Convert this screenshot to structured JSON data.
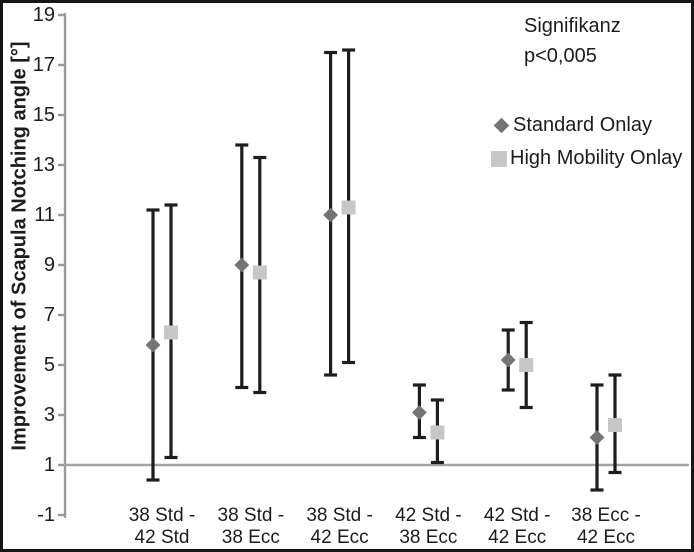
{
  "annotation": {
    "line1": "Signifikanz",
    "line2": "p<0,005"
  },
  "colors": {
    "standard_onlay": "#747474",
    "high_mobility_onlay": "#c7c7c7",
    "error_bar": "#1d1d1d",
    "axis": "#9a9a9a",
    "baseline": "#a4a4a4",
    "text": "#1c1c1c",
    "border": "#161616",
    "background": "#ffffff"
  },
  "chart_data": {
    "type": "scatter",
    "title": "",
    "xlabel": "",
    "ylabel": "Improvement of Scapula Notching angle [°]",
    "ylim": [
      -1,
      19
    ],
    "yticks": [
      19,
      17,
      15,
      13,
      11,
      9,
      7,
      5,
      3,
      1,
      -1
    ],
    "baseline": 1,
    "grid": "off",
    "legend_position": "right-top",
    "categories": [
      "38 Std - 42 Std",
      "38 Std - 38 Ecc",
      "38 Std - 42 Ecc",
      "42 Std - 38 Ecc",
      "42 Std - 42 Ecc",
      "38 Ecc - 42 Ecc"
    ],
    "series": [
      {
        "name": "Standard Onlay",
        "marker": "diamond",
        "color": "#747474",
        "values": [
          5.8,
          9.0,
          11.0,
          3.1,
          5.2,
          2.1
        ],
        "err_low": [
          0.4,
          4.1,
          4.6,
          2.1,
          4.0,
          0.0
        ],
        "err_high": [
          11.2,
          13.8,
          17.5,
          4.2,
          6.4,
          4.2
        ]
      },
      {
        "name": "High Mobility Onlay",
        "marker": "square",
        "color": "#c7c7c7",
        "values": [
          6.3,
          8.7,
          11.3,
          2.3,
          5.0,
          2.6
        ],
        "err_low": [
          1.3,
          3.9,
          5.1,
          1.1,
          3.3,
          0.7
        ],
        "err_high": [
          11.4,
          13.3,
          17.6,
          3.6,
          6.7,
          4.6
        ]
      }
    ]
  }
}
